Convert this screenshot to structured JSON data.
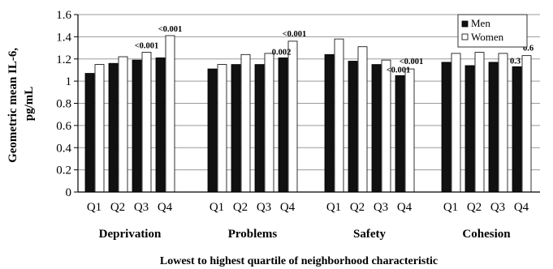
{
  "chart_data": {
    "type": "bar",
    "ylabel": "Geometric mean IL-6, pg/mL",
    "xlabel": "Lowest to highest quartile of neighborhood characteristic",
    "ylim": [
      0,
      1.6
    ],
    "yticks": [
      "0",
      "0.2",
      "0.4",
      "0.6",
      "0.8",
      "1",
      "1.2",
      "1.4",
      "1.6"
    ],
    "grid": true,
    "legend_position": "top-right",
    "series": [
      {
        "name": "Men",
        "color": "#111111"
      },
      {
        "name": "Women",
        "color": "#ffffff"
      }
    ],
    "groups": [
      {
        "name": "Deprivation",
        "categories": [
          "Q1",
          "Q2",
          "Q3",
          "Q4"
        ],
        "men": [
          1.07,
          1.16,
          1.19,
          1.21
        ],
        "women": [
          1.15,
          1.22,
          1.26,
          1.41
        ],
        "annotations": [
          {
            "category": "Q3",
            "text": "<0.001"
          },
          {
            "category": "Q4",
            "text": "<0.001"
          }
        ]
      },
      {
        "name": "Problems",
        "categories": [
          "Q1",
          "Q2",
          "Q3",
          "Q4"
        ],
        "men": [
          1.11,
          1.15,
          1.15,
          1.21
        ],
        "women": [
          1.15,
          1.24,
          1.25,
          1.36
        ],
        "annotations": [
          {
            "category": "Q4",
            "text": "0.002"
          },
          {
            "category": "Q4",
            "text": "<0.001"
          }
        ]
      },
      {
        "name": "Safety",
        "categories": [
          "Q1",
          "Q2",
          "Q3",
          "Q4"
        ],
        "men": [
          1.24,
          1.18,
          1.15,
          1.05
        ],
        "women": [
          1.38,
          1.31,
          1.19,
          1.11
        ],
        "annotations": [
          {
            "category": "Q4",
            "text": "<0.001"
          },
          {
            "category": "Q4",
            "text": "<0.001"
          }
        ]
      },
      {
        "name": "Cohesion",
        "categories": [
          "Q1",
          "Q2",
          "Q3",
          "Q4"
        ],
        "men": [
          1.17,
          1.14,
          1.17,
          1.13
        ],
        "women": [
          1.25,
          1.26,
          1.25,
          1.23
        ],
        "annotations": [
          {
            "category": "Q4",
            "text": "0.3"
          },
          {
            "category": "Q4",
            "text": "0.6"
          }
        ]
      }
    ]
  }
}
